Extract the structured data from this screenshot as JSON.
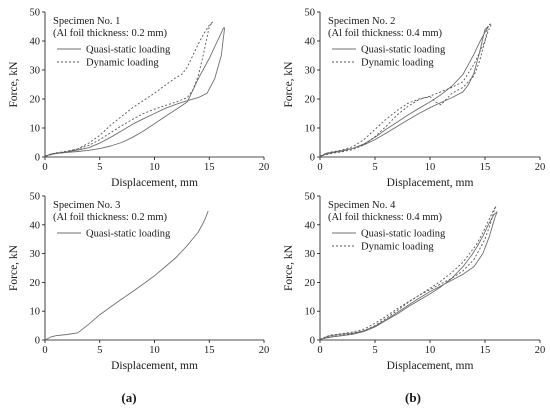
{
  "figure_labels": [
    "(a)",
    "(b)"
  ],
  "chart_data": [
    {
      "type": "line",
      "title": "Specimen No. 1",
      "subtitle": "(Al foil thickness: 0.2 mm)",
      "xlabel": "Displacement, mm",
      "ylabel": "Force, kN",
      "xlim": [
        0,
        20
      ],
      "ylim": [
        0,
        50
      ],
      "xticks": [
        "0",
        "5",
        "10",
        "15",
        "20"
      ],
      "yticks": [
        "0",
        "10",
        "20",
        "30",
        "40",
        "50"
      ],
      "grid": false,
      "legend": "top-left",
      "series": [
        {
          "name": "Quasi-static loading",
          "style": "solid",
          "color": "#6f6f6f",
          "x": [
            0,
            0.5,
            1,
            2,
            3,
            4,
            5,
            6,
            7,
            8,
            9,
            10,
            11,
            12,
            13,
            14,
            14.8,
            15.5,
            16.1,
            16.4,
            16.3,
            16.0,
            15.5,
            15,
            14.5,
            14,
            13,
            12,
            11,
            10,
            9,
            8,
            7,
            6,
            5,
            4,
            3,
            2,
            1,
            0.5,
            0
          ],
          "y": [
            0,
            1,
            1.3,
            1.8,
            2.4,
            3.2,
            4.8,
            6.8,
            9.0,
            11.3,
            13.2,
            15.0,
            16.8,
            18.2,
            19.4,
            20.5,
            22.0,
            27.0,
            35.0,
            44.5,
            44.5,
            42.0,
            38.0,
            34.0,
            30.5,
            27.0,
            19.0,
            16.5,
            14.0,
            11.5,
            9.0,
            6.8,
            5.0,
            3.8,
            2.9,
            2.3,
            1.9,
            1.6,
            1.2,
            0.9,
            0.3
          ]
        },
        {
          "name": "Dynamic loading",
          "style": "dotted",
          "color": "#555555",
          "x": [
            0,
            0.5,
            1,
            2,
            3,
            4,
            5,
            6,
            7,
            8,
            9,
            10,
            11,
            12,
            13,
            13.5,
            14,
            14.5,
            15.0,
            15.3,
            15.0,
            14.5,
            14,
            13.5,
            13,
            12.5,
            12,
            11,
            10,
            9,
            8,
            7,
            6,
            5,
            4,
            3,
            2,
            1,
            0
          ],
          "y": [
            0,
            1,
            1.4,
            2.0,
            2.8,
            4.0,
            6.0,
            8.4,
            10.8,
            13.0,
            15.0,
            16.5,
            17.8,
            19.0,
            20.5,
            23.0,
            28.0,
            36.0,
            45.0,
            46.5,
            45.5,
            42.5,
            39.0,
            35.0,
            31.0,
            28.5,
            27.5,
            24.8,
            22.0,
            19.5,
            17.0,
            14.0,
            11.0,
            7.5,
            4.8,
            2.8,
            1.8,
            1.2,
            0.3
          ]
        }
      ]
    },
    {
      "type": "line",
      "title": "Specimen No. 2",
      "subtitle": "(Al foil thickness: 0.4 mm)",
      "xlabel": "Displacement, mm",
      "ylabel": "Force, kN",
      "xlim": [
        0,
        20
      ],
      "ylim": [
        0,
        50
      ],
      "xticks": [
        "0",
        "5",
        "10",
        "15",
        "20"
      ],
      "yticks": [
        "0",
        "10",
        "20",
        "30",
        "40",
        "50"
      ],
      "grid": false,
      "legend": "top-left",
      "series": [
        {
          "name": "Quasi-static loading",
          "style": "solid",
          "color": "#6f6f6f",
          "x": [
            0,
            0.5,
            1,
            2,
            3,
            4,
            5,
            6,
            7,
            8,
            9,
            10,
            11,
            12,
            13,
            13.5,
            14,
            14.5,
            15.0,
            15.3,
            15.0,
            14.5,
            14,
            13.5,
            13,
            12,
            11,
            10,
            9,
            8,
            7,
            6,
            5,
            4,
            3,
            2,
            1,
            0
          ],
          "y": [
            0,
            1.2,
            1.6,
            2.2,
            3.0,
            4.2,
            6.0,
            8.2,
            10.5,
            12.8,
            15.0,
            17.0,
            18.8,
            20.5,
            22.5,
            25.0,
            29.0,
            36.0,
            44.0,
            45.0,
            43.0,
            39.5,
            35.5,
            32.0,
            28.5,
            24.5,
            21.5,
            19.0,
            16.8,
            14.5,
            12.0,
            9.5,
            6.8,
            4.5,
            3.0,
            2.0,
            1.4,
            0.4
          ]
        },
        {
          "name": "Dynamic loading",
          "style": "dotted",
          "color": "#555555",
          "x": [
            0,
            0.5,
            1,
            2,
            3,
            4,
            5,
            6,
            7,
            8,
            9,
            10,
            10.5,
            11,
            11.5,
            12,
            13,
            14,
            14.5,
            15,
            15.3,
            15.6,
            15.3,
            15.0,
            14.5,
            14,
            13.5,
            13,
            12,
            11,
            10,
            9,
            8,
            7,
            6,
            5,
            4,
            3,
            2,
            1,
            0
          ],
          "y": [
            0,
            1.2,
            1.7,
            2.4,
            3.6,
            6.0,
            9.5,
            13.0,
            16.0,
            18.5,
            20.0,
            20.8,
            19.0,
            18.0,
            20.0,
            22.0,
            24.0,
            28.0,
            33.0,
            40.0,
            45.5,
            46.0,
            43.5,
            40.0,
            36.0,
            32.0,
            29.0,
            26.0,
            24.0,
            22.5,
            21.0,
            19.8,
            17.5,
            14.5,
            10.5,
            7.0,
            4.2,
            2.6,
            1.8,
            1.2,
            0.3
          ]
        }
      ]
    },
    {
      "type": "line",
      "title": "Specimen No. 3",
      "subtitle": "(Al foil thickness: 0.2 mm)",
      "xlabel": "Displacement, mm",
      "ylabel": "Force, kN",
      "xlim": [
        0,
        20
      ],
      "ylim": [
        0,
        50
      ],
      "xticks": [
        "0",
        "5",
        "10",
        "15",
        "20"
      ],
      "yticks": [
        "0",
        "10",
        "20",
        "30",
        "40",
        "50"
      ],
      "grid": false,
      "legend": "top-left",
      "series": [
        {
          "name": "Quasi-static loading",
          "style": "solid",
          "color": "#6f6f6f",
          "x": [
            0,
            0.5,
            1,
            2,
            3,
            4,
            5,
            6,
            7,
            8,
            9,
            10,
            11,
            12,
            13,
            14,
            14.5,
            14.9
          ],
          "y": [
            0,
            1.0,
            1.5,
            1.9,
            2.5,
            5.5,
            8.8,
            11.5,
            14.2,
            16.8,
            19.5,
            22.3,
            25.5,
            28.8,
            32.8,
            37.5,
            41.0,
            44.8
          ]
        }
      ]
    },
    {
      "type": "line",
      "title": "Specimen No. 4",
      "subtitle": "(Al foil thickness: 0.4 mm)",
      "xlabel": "Displacement, mm",
      "ylabel": "Force, kN",
      "xlim": [
        0,
        20
      ],
      "ylim": [
        0,
        50
      ],
      "xticks": [
        "0",
        "5",
        "10",
        "15",
        "20"
      ],
      "yticks": [
        "0",
        "10",
        "20",
        "30",
        "40",
        "50"
      ],
      "grid": false,
      "legend": "top-left",
      "series": [
        {
          "name": "Quasi-static loading",
          "style": "solid",
          "color": "#6f6f6f",
          "x": [
            0,
            0.5,
            1,
            2,
            3,
            4,
            5,
            6,
            7,
            8,
            9,
            10,
            11,
            12,
            13,
            14,
            14.8,
            15.4,
            15.9,
            16.1,
            15.8,
            15.3,
            14.8,
            14.3,
            13.8,
            13,
            12,
            11,
            10,
            9,
            8,
            7,
            6,
            5,
            4,
            3,
            2,
            1,
            0
          ],
          "y": [
            0,
            1.0,
            1.5,
            2.0,
            2.4,
            3.2,
            4.8,
            7.0,
            9.5,
            12.0,
            14.5,
            16.8,
            18.8,
            20.8,
            22.8,
            25.5,
            30.0,
            36.0,
            42.5,
            44.5,
            43.5,
            40.0,
            36.0,
            32.5,
            29.5,
            25.5,
            21.5,
            18.5,
            16.0,
            13.8,
            11.5,
            9.0,
            6.8,
            4.5,
            3.0,
            2.0,
            1.5,
            1.0,
            0.3
          ]
        },
        {
          "name": "Dynamic loading",
          "style": "dotted",
          "color": "#555555",
          "x": [
            0,
            0.5,
            1,
            2,
            3,
            4,
            5,
            6,
            7,
            8,
            9,
            10,
            11,
            12,
            13,
            14,
            15,
            15.5,
            15.8,
            16.0,
            15.7,
            15.2,
            14.7,
            14.2,
            13.5,
            13,
            12,
            11,
            10,
            9,
            8,
            7,
            6,
            5,
            4,
            3,
            2,
            1,
            0
          ],
          "y": [
            0,
            1.1,
            1.7,
            2.2,
            2.8,
            3.8,
            5.8,
            8.2,
            10.8,
            13.2,
            15.5,
            17.5,
            19.5,
            21.5,
            24.0,
            28.0,
            35.0,
            40.5,
            44.5,
            46.5,
            44.5,
            40.5,
            36.5,
            33.0,
            29.5,
            27.0,
            23.5,
            20.5,
            18.0,
            15.5,
            13.0,
            10.2,
            7.5,
            5.0,
            3.2,
            2.2,
            1.6,
            1.1,
            0.3
          ]
        }
      ]
    }
  ]
}
